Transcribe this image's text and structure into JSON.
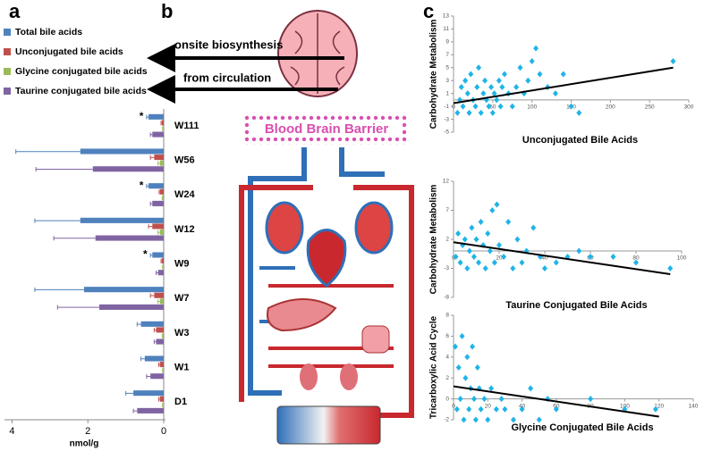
{
  "panels": [
    "a",
    "b",
    "c"
  ],
  "diagram": {
    "labels": [
      "onsite biosynthesis",
      "from circulation",
      "Blood Brain Barrier"
    ]
  },
  "chart_data": [
    {
      "type": "hbar",
      "x_reversed": true,
      "xlabel": "nmol/g",
      "xlim": [
        0,
        4.2
      ],
      "xticks": [
        0,
        2,
        4
      ],
      "legend": "upper left",
      "categories": [
        "W111",
        "W56",
        "W24",
        "W12",
        "W9",
        "W7",
        "W3",
        "W1",
        "D1"
      ],
      "series": [
        {
          "name": "Total bile acids",
          "color": "#4f81bd",
          "values": [
            0.4,
            2.2,
            0.4,
            2.2,
            0.3,
            2.1,
            0.6,
            0.5,
            0.8
          ],
          "errors": [
            0.05,
            1.7,
            0.05,
            1.2,
            0.05,
            1.3,
            0.1,
            0.1,
            0.2
          ]
        },
        {
          "name": "Unconjugated bile acids",
          "color": "#c0504d",
          "values": [
            0.05,
            0.25,
            0.1,
            0.3,
            0.05,
            0.25,
            0.2,
            0.1,
            0.1
          ],
          "errors": [
            0.02,
            0.1,
            0.02,
            0.1,
            0.02,
            0.1,
            0.05,
            0.03,
            0.03
          ]
        },
        {
          "name": "Glycine conjugated bile acids",
          "color": "#9bbb59",
          "values": [
            0.02,
            0.1,
            0.03,
            0.1,
            0.02,
            0.1,
            0.03,
            0.02,
            0.02
          ],
          "errors": [
            0.01,
            0.05,
            0.01,
            0.05,
            0.01,
            0.05,
            0.01,
            0.01,
            0.01
          ]
        },
        {
          "name": "Taurine conjugated bile acids",
          "color": "#8064a2",
          "values": [
            0.3,
            1.87,
            0.3,
            1.8,
            0.15,
            1.7,
            0.2,
            0.35,
            0.7
          ],
          "errors": [
            0.05,
            1.5,
            0.05,
            1.1,
            0.05,
            1.1,
            0.05,
            0.1,
            0.1
          ]
        }
      ],
      "annotations": [
        {
          "category": 0,
          "text": "*"
        },
        {
          "category": 2,
          "text": "*"
        },
        {
          "category": 4,
          "text": "*"
        }
      ]
    },
    {
      "type": "scatter",
      "xlabel": "Unconjugated Bile Acids",
      "ylabel": "Carbohydrate Metabolism",
      "color": "#1fb4e8",
      "xlim": [
        0,
        300
      ],
      "xticks": [
        0,
        50,
        100,
        150,
        200,
        250,
        300
      ],
      "ylim": [
        -5,
        13
      ],
      "yticks": [
        -5,
        -3,
        -1,
        1,
        3,
        5,
        7,
        9,
        11,
        13
      ],
      "x": [
        5,
        8,
        10,
        12,
        15,
        18,
        20,
        22,
        25,
        28,
        30,
        32,
        35,
        38,
        40,
        42,
        45,
        48,
        50,
        52,
        55,
        58,
        60,
        62,
        65,
        70,
        75,
        80,
        85,
        90,
        95,
        100,
        105,
        110,
        120,
        130,
        140,
        150,
        160,
        280
      ],
      "y": [
        -2,
        0,
        2,
        -1,
        3,
        1,
        -2,
        4,
        0,
        -1,
        2,
        5,
        -2,
        1,
        3,
        0,
        -1,
        2,
        -2,
        1,
        0,
        3,
        -1,
        2,
        4,
        1,
        -1,
        2,
        5,
        1,
        3,
        6,
        8,
        4,
        2,
        1,
        4,
        -1,
        -2,
        6
      ],
      "trend": {
        "x": [
          0,
          280
        ],
        "y": [
          -0.5,
          5
        ]
      }
    },
    {
      "type": "scatter",
      "xlabel": "Taurine Conjugated Bile Acids",
      "ylabel": "Carbohydrate Metabolism",
      "color": "#1fb4e8",
      "xlim": [
        0,
        100
      ],
      "xticks": [
        0,
        20,
        40,
        60,
        80,
        100
      ],
      "ylim": [
        -8,
        12
      ],
      "yticks": [
        -8,
        -3,
        2,
        7,
        12
      ],
      "x": [
        1,
        2,
        3,
        4,
        5,
        6,
        7,
        8,
        9,
        10,
        11,
        12,
        13,
        14,
        15,
        16,
        17,
        18,
        19,
        20,
        22,
        24,
        26,
        28,
        30,
        32,
        35,
        38,
        40,
        45,
        50,
        55,
        60,
        70,
        80,
        95
      ],
      "y": [
        -1,
        3,
        -2,
        1,
        2,
        -3,
        0,
        4,
        -1,
        2,
        -2,
        5,
        1,
        -3,
        3,
        0,
        7,
        -2,
        8,
        1,
        -1,
        5,
        -3,
        2,
        -2,
        0,
        4,
        -1,
        -3,
        -2,
        -1,
        0,
        -1,
        -1,
        -2,
        -3
      ],
      "trend": {
        "x": [
          0,
          95
        ],
        "y": [
          1.5,
          -4
        ]
      }
    },
    {
      "type": "scatter",
      "xlabel": "Glycine Conjugated Bile Acids",
      "ylabel": "Tricarboxylic Acid Cycle",
      "color": "#1fb4e8",
      "xlim": [
        0,
        140
      ],
      "xticks": [
        0,
        20,
        40,
        60,
        80,
        100,
        120,
        140
      ],
      "ylim": [
        -2,
        8
      ],
      "yticks": [
        -2,
        0,
        2,
        4,
        6,
        8
      ],
      "x": [
        1,
        2,
        3,
        4,
        5,
        6,
        7,
        8,
        9,
        10,
        11,
        12,
        13,
        14,
        15,
        16,
        18,
        20,
        22,
        25,
        28,
        30,
        35,
        40,
        45,
        50,
        55,
        60,
        80,
        100,
        118
      ],
      "y": [
        5,
        -1,
        3,
        0,
        6,
        -2,
        2,
        4,
        -1,
        1,
        5,
        0,
        -2,
        3,
        1,
        -1,
        0,
        -2,
        1,
        -1,
        0,
        -1,
        -2,
        -1,
        1,
        -2,
        0,
        -1,
        0,
        -1,
        -1
      ],
      "trend": {
        "x": [
          0,
          120
        ],
        "y": [
          1.2,
          -1.7
        ]
      }
    }
  ]
}
